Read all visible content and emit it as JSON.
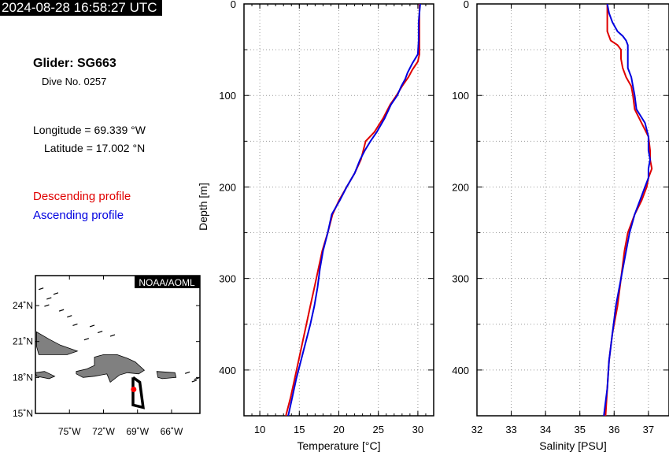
{
  "header": {
    "timestamp": "2024-08-28 16:58:27 UTC",
    "glider": "Glider: SG663",
    "dive": "Dive No. 0257",
    "longitude": "Longitude = 69.339 °W",
    "latitude": "Latitude = 17.002 °N",
    "descending_label": "Descending profile",
    "ascending_label": "Ascending profile"
  },
  "colors": {
    "descending": "#e00000",
    "ascending": "#0000e0",
    "land": "#808080",
    "track": "#000000"
  },
  "map": {
    "credit": "NOAA/AOML",
    "lat_ticks": [
      "24˚N",
      "21˚N",
      "18˚N",
      "15˚N"
    ],
    "lon_ticks": [
      "75˚W",
      "72˚W",
      "69˚W",
      "66˚W"
    ],
    "lon_range": [
      -78,
      -63.5
    ],
    "lat_range": [
      15,
      26.5
    ],
    "lat_values": [
      24,
      21,
      18,
      15
    ],
    "lon_values": [
      -75,
      -72,
      -69,
      -66
    ],
    "glider_position": [
      -69.339,
      17.002
    ],
    "track": [
      [
        -69.4,
        18.0
      ],
      [
        -68.8,
        17.6
      ],
      [
        -68.5,
        15.5
      ],
      [
        -69.4,
        15.7
      ],
      [
        -69.4,
        18.0
      ]
    ]
  },
  "chart_data": [
    {
      "type": "line",
      "xlabel": "Temperature [°C]",
      "ylabel": "Depth [m]",
      "xlim": [
        8,
        32
      ],
      "ylim": [
        450,
        0
      ],
      "xticks": [
        10,
        15,
        20,
        25,
        30
      ],
      "yticks": [
        0,
        100,
        200,
        300,
        400
      ],
      "grid": true,
      "series": [
        {
          "name": "Descending profile",
          "depth": [
            0,
            20,
            40,
            55,
            63,
            72,
            80,
            90,
            100,
            110,
            125,
            140,
            150,
            160,
            170,
            185,
            200,
            215,
            230,
            250,
            270,
            290,
            310,
            330,
            350,
            370,
            390,
            410,
            430,
            450
          ],
          "values": [
            30.2,
            30.2,
            30.2,
            30.2,
            30.0,
            29.3,
            28.8,
            28.0,
            27.3,
            26.5,
            25.6,
            24.5,
            23.4,
            23.1,
            22.8,
            22.0,
            21.0,
            20.0,
            19.2,
            18.6,
            17.9,
            17.4,
            16.9,
            16.4,
            15.9,
            15.4,
            14.9,
            14.4,
            13.9,
            13.3
          ]
        },
        {
          "name": "Ascending profile",
          "depth": [
            0,
            20,
            40,
            55,
            65,
            75,
            82,
            90,
            100,
            110,
            125,
            140,
            150,
            160,
            170,
            185,
            200,
            215,
            230,
            250,
            270,
            290,
            310,
            330,
            350,
            370,
            390,
            410,
            430,
            450
          ],
          "values": [
            30.3,
            30.1,
            30.1,
            30.0,
            29.3,
            28.7,
            28.4,
            27.9,
            27.4,
            26.6,
            25.8,
            24.8,
            24.0,
            23.3,
            22.7,
            22.0,
            21.0,
            20.1,
            19.1,
            18.6,
            18.0,
            17.6,
            17.3,
            16.9,
            16.4,
            15.8,
            15.2,
            14.6,
            14.1,
            13.6
          ]
        }
      ]
    },
    {
      "type": "line",
      "xlabel": "Salinity [PSU]",
      "ylabel": "",
      "xlim": [
        32,
        37.6
      ],
      "ylim": [
        450,
        0
      ],
      "xticks": [
        32,
        33,
        34,
        35,
        36,
        37
      ],
      "yticks": [
        0,
        100,
        200,
        300,
        400
      ],
      "grid": true,
      "series": [
        {
          "name": "Descending profile",
          "depth": [
            0,
            10,
            20,
            30,
            40,
            45,
            50,
            60,
            70,
            80,
            90,
            100,
            115,
            130,
            145,
            160,
            170,
            180,
            190,
            200,
            215,
            230,
            250,
            270,
            300,
            330,
            360,
            390,
            420,
            450
          ],
          "values": [
            35.8,
            35.8,
            35.8,
            35.8,
            35.9,
            36.1,
            36.2,
            36.2,
            36.25,
            36.35,
            36.5,
            36.55,
            36.6,
            36.8,
            37.0,
            37.05,
            37.05,
            37.1,
            37.0,
            36.95,
            36.8,
            36.6,
            36.4,
            36.3,
            36.2,
            36.1,
            35.95,
            35.85,
            35.8,
            35.75
          ]
        },
        {
          "name": "Ascending profile",
          "depth": [
            0,
            10,
            20,
            30,
            35,
            40,
            45,
            60,
            70,
            80,
            90,
            100,
            115,
            130,
            145,
            160,
            170,
            180,
            190,
            200,
            215,
            230,
            250,
            270,
            300,
            330,
            360,
            390,
            420,
            450
          ],
          "values": [
            35.8,
            35.85,
            35.95,
            36.1,
            36.25,
            36.35,
            36.4,
            36.4,
            36.4,
            36.5,
            36.55,
            36.6,
            36.65,
            36.9,
            37.0,
            37.0,
            37.05,
            37.0,
            37.0,
            36.9,
            36.75,
            36.6,
            36.45,
            36.35,
            36.2,
            36.05,
            35.95,
            35.85,
            35.8,
            35.7
          ]
        }
      ]
    }
  ]
}
